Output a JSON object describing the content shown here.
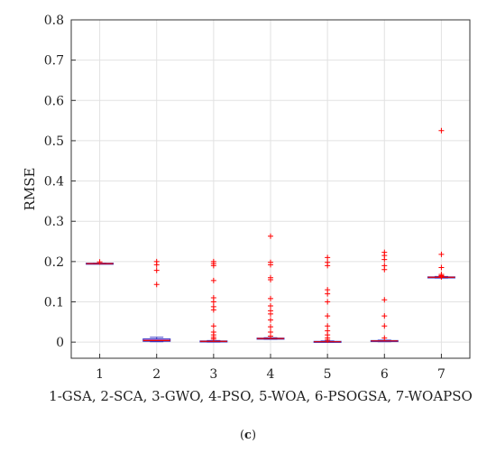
{
  "chart_data": {
    "type": "boxplot",
    "ylabel": "RMSE",
    "xlabel": "1-GSA, 2-SCA, 3-GWO, 4-PSO, 5-WOA, 6-PSOGSA, 7-WOAPSO",
    "caption_parts": [
      "(",
      "c",
      ")"
    ],
    "categories": [
      "1",
      "2",
      "3",
      "4",
      "5",
      "6",
      "7"
    ],
    "ylim": [
      -0.04,
      0.8
    ],
    "yticks": [
      0,
      0.1,
      0.2,
      0.3,
      0.4,
      0.5,
      0.6,
      0.7,
      0.8
    ],
    "ytick_labels": [
      "0",
      "0.1",
      "0.2",
      "0.3",
      "0.4",
      "0.5",
      "0.6",
      "0.7",
      "0.8"
    ],
    "grid": true,
    "colors": {
      "box": "#3b3bc8",
      "box_fill": "#cc66cc",
      "median": "#e00000",
      "outlier": "#ff0000",
      "grid": "#e2e2e2",
      "frame": "#333333"
    },
    "boxes": [
      {
        "category": "1",
        "q1": 0.194,
        "median": 0.195,
        "q3": 0.196,
        "whisker_low": 0.194,
        "whisker_high": 0.196,
        "outliers": [
          0.199
        ]
      },
      {
        "category": "2",
        "q1": 0.002,
        "median": 0.004,
        "q3": 0.008,
        "whisker_low": 0.001,
        "whisker_high": 0.012,
        "outliers": [
          0.143,
          0.178,
          0.192,
          0.2
        ]
      },
      {
        "category": "3",
        "q1": 0.001,
        "median": 0.002,
        "q3": 0.003,
        "whisker_low": 0.0,
        "whisker_high": 0.004,
        "outliers": [
          0.008,
          0.012,
          0.018,
          0.025,
          0.04,
          0.08,
          0.088,
          0.1,
          0.11,
          0.153,
          0.19,
          0.195,
          0.2
        ]
      },
      {
        "category": "4",
        "q1": 0.008,
        "median": 0.009,
        "q3": 0.01,
        "whisker_low": 0.007,
        "whisker_high": 0.011,
        "outliers": [
          0.015,
          0.025,
          0.038,
          0.055,
          0.07,
          0.078,
          0.09,
          0.108,
          0.155,
          0.16,
          0.192,
          0.198,
          0.263
        ]
      },
      {
        "category": "5",
        "q1": 0.0,
        "median": 0.001,
        "q3": 0.002,
        "whisker_low": 0.0,
        "whisker_high": 0.003,
        "outliers": [
          0.005,
          0.01,
          0.018,
          0.028,
          0.04,
          0.065,
          0.1,
          0.12,
          0.13,
          0.19,
          0.198,
          0.21
        ]
      },
      {
        "category": "6",
        "q1": 0.002,
        "median": 0.003,
        "q3": 0.004,
        "whisker_low": 0.001,
        "whisker_high": 0.005,
        "outliers": [
          0.01,
          0.04,
          0.065,
          0.105,
          0.18,
          0.19,
          0.205,
          0.215,
          0.223
        ]
      },
      {
        "category": "7",
        "q1": 0.16,
        "median": 0.161,
        "q3": 0.162,
        "whisker_low": 0.159,
        "whisker_high": 0.163,
        "outliers": [
          0.162,
          0.163,
          0.165,
          0.168,
          0.185,
          0.218,
          0.525
        ]
      }
    ]
  }
}
